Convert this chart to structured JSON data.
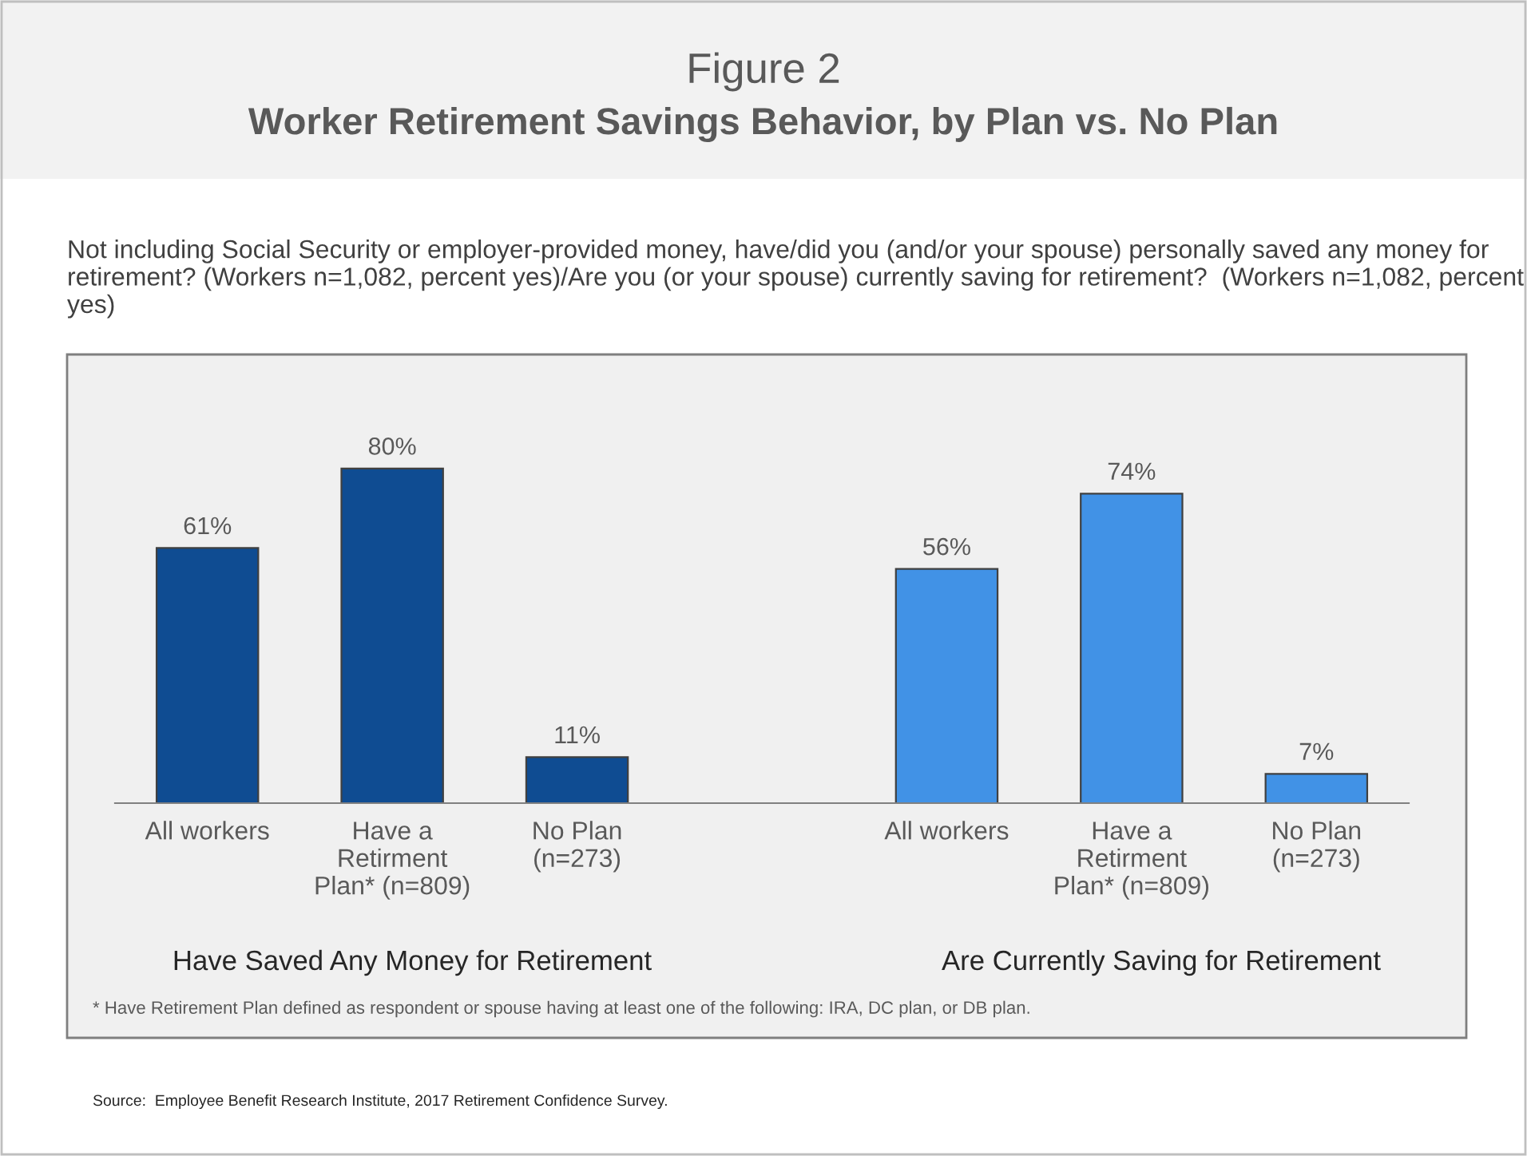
{
  "chart_data": {
    "type": "bar",
    "title": "Figure 2",
    "subtitle": "Worker Retirement Savings Behavior, by Plan vs. No Plan",
    "categories": [
      "All workers",
      "Have a\nRetirment\nPlan* (n=809)",
      "No Plan\n(n=273)",
      null,
      "All workers",
      "Have a\nRetirment\nPlan* (n=809)",
      "No Plan\n(n=273)"
    ],
    "values": [
      61,
      80,
      11,
      null,
      56,
      74,
      7
    ],
    "colors": [
      "#0f4c92",
      "#0f4c92",
      "#0f4c92",
      null,
      "#4192e6",
      "#4192e6",
      "#4192e6"
    ],
    "value_labels": [
      "61%",
      "80%",
      "11%",
      null,
      "56%",
      "74%",
      "7%"
    ],
    "annotations": [
      "Not including Social Security or employer-provided money, have/did you (and/or your spouse) personally saved any money for retirement? (Workers n=1,082, percent yes)/Are you (or your spouse) currently saving for retirement?  (Workers n=1,082, percent yes)",
      "Have Saved Any Money for Retirement",
      "Are Currently Saving for Retirement",
      "* Have Retirement Plan defined as respondent or spouse having at least one of the following: IRA, DC plan, or DB plan.",
      "Source:  Employee Benefit Research Institute, 2017 Retirement Confidence Survey."
    ],
    "grid": false,
    "legend": false
  }
}
